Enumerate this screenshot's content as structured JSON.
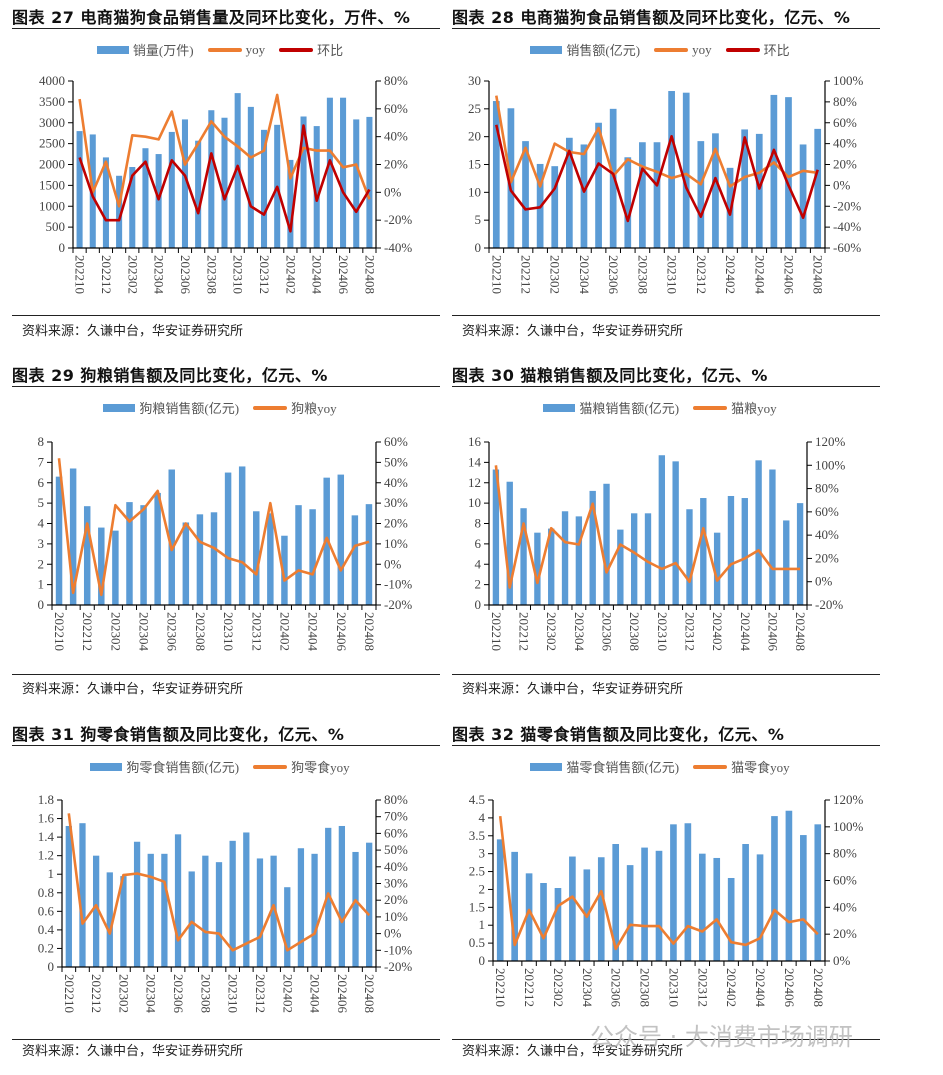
{
  "colors": {
    "bar": "#5B9BD5",
    "yoy": "#ED7D31",
    "mom": "#C00000"
  },
  "watermark": "公众号 · 大消费市场调研",
  "chart_data": [
    {
      "type": "bar+line",
      "title": "图表 27 电商猫狗食品销售量及同环比变化，万件、%",
      "source": "资料来源：久谦中台，华安证券研究所",
      "categories": [
        "202210",
        "202211",
        "202212",
        "202301",
        "202302",
        "202303",
        "202304",
        "202305",
        "202306",
        "202307",
        "202308",
        "202309",
        "202310",
        "202311",
        "202312",
        "202401",
        "202402",
        "202403",
        "202404",
        "202405",
        "202406",
        "202407",
        "202408"
      ],
      "x_tick_labels": [
        "202210",
        "202212",
        "202302",
        "202304",
        "202306",
        "202308",
        "202310",
        "202312",
        "202402",
        "202404",
        "202406",
        "202408"
      ],
      "ylim": [
        0,
        4000
      ],
      "y_ticks": [
        "0",
        "500",
        "1000",
        "1500",
        "2000",
        "2500",
        "3000",
        "3500",
        "4000"
      ],
      "y2lim": [
        -40,
        80
      ],
      "y2_ticks": [
        "-40%",
        "-20%",
        "0%",
        "20%",
        "40%",
        "60%",
        "80%"
      ],
      "grid": false,
      "legend": "top",
      "series": [
        {
          "name": "销量(万件)",
          "kind": "bar",
          "axis": "left",
          "values": [
            2800,
            2720,
            2170,
            1730,
            1940,
            2390,
            2250,
            2780,
            3080,
            2570,
            3300,
            3120,
            3710,
            3380,
            2830,
            2950,
            2110,
            3150,
            2920,
            3600,
            3600,
            3080,
            3140
          ]
        },
        {
          "name": "yoy",
          "kind": "line",
          "axis": "right",
          "color": "yoy",
          "values": [
            67,
            0,
            22,
            -10,
            41,
            40,
            38,
            58,
            20,
            35,
            51,
            40,
            33,
            25,
            30,
            70,
            10,
            32,
            30,
            30,
            18,
            20,
            -5
          ]
        },
        {
          "name": "环比",
          "kind": "line",
          "axis": "right",
          "color": "mom",
          "values": [
            25,
            -3,
            -20,
            -20,
            12,
            22,
            -5,
            23,
            12,
            -15,
            28,
            -5,
            19,
            -10,
            -16,
            4,
            -28,
            48,
            -6,
            23,
            0,
            -14,
            2
          ]
        }
      ]
    },
    {
      "type": "bar+line",
      "title": "图表 28 电商猫狗食品销售额及同环比变化，亿元、%",
      "source": "资料来源：久谦中台，华安证券研究所",
      "categories": [
        "202210",
        "202211",
        "202212",
        "202301",
        "202302",
        "202303",
        "202304",
        "202305",
        "202306",
        "202307",
        "202308",
        "202309",
        "202310",
        "202311",
        "202312",
        "202401",
        "202402",
        "202403",
        "202404",
        "202405",
        "202406",
        "202407",
        "202408"
      ],
      "x_tick_labels": [
        "202210",
        "202212",
        "202302",
        "202304",
        "202306",
        "202308",
        "202310",
        "202312",
        "202402",
        "202404",
        "202406",
        "202408"
      ],
      "ylim": [
        0,
        30
      ],
      "y_ticks": [
        "0",
        "5",
        "10",
        "15",
        "20",
        "25",
        "30"
      ],
      "y2lim": [
        -60,
        100
      ],
      "y2_ticks": [
        "-60%",
        "-40%",
        "-20%",
        "0%",
        "20%",
        "40%",
        "60%",
        "80%",
        "100%"
      ],
      "grid": false,
      "legend": "top",
      "series": [
        {
          "name": "销售额(亿元)",
          "kind": "bar",
          "axis": "left",
          "values": [
            26.4,
            25.1,
            19.2,
            15.1,
            14.7,
            19.8,
            18.6,
            22.5,
            25.0,
            16.3,
            19.0,
            19.0,
            28.2,
            27.9,
            19.2,
            20.6,
            14.4,
            21.3,
            20.5,
            27.5,
            27.1,
            18.6,
            21.4
          ]
        },
        {
          "name": "yoy",
          "kind": "line",
          "axis": "right",
          "color": "yoy",
          "values": [
            86,
            3,
            36,
            -1,
            40,
            32,
            30,
            55,
            9,
            25,
            18,
            13,
            7,
            11,
            1,
            35,
            -1,
            8,
            12,
            22,
            8,
            14,
            12
          ]
        },
        {
          "name": "环比",
          "kind": "line",
          "axis": "right",
          "color": "mom",
          "values": [
            58,
            -5,
            -23,
            -21,
            -3,
            33,
            -6,
            21,
            11,
            -34,
            16,
            0,
            47,
            -2,
            -30,
            7,
            -28,
            46,
            -3,
            34,
            0,
            -31,
            15
          ]
        }
      ]
    },
    {
      "type": "bar+line",
      "title": "图表 29 狗粮销售额及同比变化，亿元、%",
      "source": "资料来源：久谦中台，华安证券研究所",
      "categories": [
        "202210",
        "202211",
        "202212",
        "202301",
        "202302",
        "202303",
        "202304",
        "202305",
        "202306",
        "202307",
        "202308",
        "202309",
        "202310",
        "202311",
        "202312",
        "202401",
        "202402",
        "202403",
        "202404",
        "202405",
        "202406",
        "202407",
        "202408"
      ],
      "x_tick_labels": [
        "202210",
        "202212",
        "202302",
        "202304",
        "202306",
        "202308",
        "202310",
        "202312",
        "202402",
        "202404",
        "202406",
        "202408"
      ],
      "ylim": [
        0,
        8
      ],
      "y_ticks": [
        "0",
        "1",
        "2",
        "3",
        "4",
        "5",
        "6",
        "7",
        "8"
      ],
      "y2lim": [
        -20,
        60
      ],
      "y2_ticks": [
        "-20%",
        "-10%",
        "0%",
        "10%",
        "20%",
        "30%",
        "40%",
        "50%",
        "60%"
      ],
      "grid": false,
      "legend": "top",
      "series": [
        {
          "name": "狗粮销售额(亿元)",
          "kind": "bar",
          "axis": "left",
          "values": [
            6.3,
            6.7,
            4.85,
            3.8,
            3.65,
            5.05,
            4.9,
            5.5,
            6.65,
            4.05,
            4.45,
            4.55,
            6.5,
            6.8,
            4.6,
            4.5,
            3.4,
            4.9,
            4.7,
            6.25,
            6.4,
            4.4,
            4.95
          ]
        },
        {
          "name": "狗粮yoy",
          "kind": "line",
          "axis": "right",
          "color": "yoy",
          "values": [
            52,
            -14,
            20,
            -15,
            29,
            21,
            27,
            36,
            7,
            20,
            11,
            8,
            3,
            1,
            -5,
            30,
            -8,
            -3,
            -5,
            13,
            -3,
            9,
            11
          ]
        }
      ]
    },
    {
      "type": "bar+line",
      "title": "图表 30 猫粮销售额及同比变化，亿元、%",
      "source": "资料来源：久谦中台，华安证券研究所",
      "categories": [
        "202210",
        "202211",
        "202212",
        "202301",
        "202302",
        "202303",
        "202304",
        "202305",
        "202306",
        "202307",
        "202308",
        "202309",
        "202310",
        "202311",
        "202312",
        "202401",
        "202402",
        "202403",
        "202404",
        "202405",
        "202406",
        "202407",
        "202408"
      ],
      "x_tick_labels": [
        "202210",
        "202212",
        "202302",
        "202304",
        "202306",
        "202308",
        "202310",
        "202312",
        "202402",
        "202404",
        "202406",
        "202408"
      ],
      "ylim": [
        0,
        16
      ],
      "y_ticks": [
        "0",
        "2",
        "4",
        "6",
        "8",
        "10",
        "12",
        "14",
        "16"
      ],
      "y2lim": [
        -20,
        120
      ],
      "y2_ticks": [
        "-20%",
        "0%",
        "20%",
        "40%",
        "60%",
        "80%",
        "100%",
        "120%"
      ],
      "grid": false,
      "legend": "top",
      "series": [
        {
          "name": "猫粮销售额(亿元)",
          "kind": "bar",
          "axis": "left",
          "values": [
            13.3,
            12.1,
            9.5,
            7.1,
            7.5,
            9.2,
            8.7,
            11.2,
            11.9,
            7.4,
            9.0,
            9.0,
            14.7,
            14.1,
            9.4,
            10.5,
            7.1,
            10.7,
            10.5,
            14.2,
            13.3,
            8.3,
            10.0
          ]
        },
        {
          "name": "猫粮yoy",
          "kind": "line",
          "axis": "right",
          "color": "yoy",
          "values": [
            100,
            -5,
            50,
            -1,
            46,
            34,
            32,
            67,
            8,
            32,
            25,
            17,
            11,
            16,
            0,
            46,
            1,
            15,
            20,
            27,
            11,
            11,
            11
          ]
        }
      ]
    },
    {
      "type": "bar+line",
      "title": "图表 31 狗零食销售额及同比变化，亿元、%",
      "source": "资料来源：久谦中台，华安证券研究所",
      "categories": [
        "202210",
        "202211",
        "202212",
        "202301",
        "202302",
        "202303",
        "202304",
        "202305",
        "202306",
        "202307",
        "202308",
        "202309",
        "202310",
        "202311",
        "202312",
        "202401",
        "202402",
        "202403",
        "202404",
        "202405",
        "202406",
        "202407",
        "202408"
      ],
      "x_tick_labels": [
        "202210",
        "202212",
        "202302",
        "202304",
        "202306",
        "202308",
        "202310",
        "202312",
        "202402",
        "202404",
        "202406",
        "202408"
      ],
      "ylim": [
        0,
        1.8
      ],
      "y_ticks": [
        "0",
        "0.2",
        "0.4",
        "0.6",
        "0.8",
        "1",
        "1.2",
        "1.4",
        "1.6",
        "1.8"
      ],
      "y2lim": [
        -20,
        80
      ],
      "y2_ticks": [
        "-20%",
        "-10%",
        "0%",
        "10%",
        "20%",
        "30%",
        "40%",
        "50%",
        "60%",
        "70%",
        "80%"
      ],
      "grid": false,
      "legend": "top",
      "series": [
        {
          "name": "狗零食销售额(亿元)",
          "kind": "bar",
          "axis": "left",
          "values": [
            1.52,
            1.55,
            1.2,
            1.02,
            0.98,
            1.35,
            1.22,
            1.22,
            1.43,
            1.03,
            1.2,
            1.13,
            1.36,
            1.45,
            1.17,
            1.2,
            0.86,
            1.28,
            1.22,
            1.5,
            1.52,
            1.24,
            1.34
          ]
        },
        {
          "name": "狗零食yoy",
          "kind": "line",
          "axis": "right",
          "color": "yoy",
          "values": [
            72,
            6,
            17,
            0,
            35,
            36,
            34,
            31,
            -4,
            7,
            1,
            0,
            -10,
            -6,
            -2,
            17,
            -10,
            -5,
            0,
            24,
            7,
            20,
            11
          ]
        }
      ]
    },
    {
      "type": "bar+line",
      "title": "图表 32 猫零食销售额及同比变化，亿元、%",
      "source": "资料来源：久谦中台，华安证券研究所",
      "categories": [
        "202210",
        "202211",
        "202212",
        "202301",
        "202302",
        "202303",
        "202304",
        "202305",
        "202306",
        "202307",
        "202308",
        "202309",
        "202310",
        "202311",
        "202312",
        "202401",
        "202402",
        "202403",
        "202404",
        "202405",
        "202406",
        "202407",
        "202408"
      ],
      "x_tick_labels": [
        "202210",
        "202212",
        "202302",
        "202304",
        "202306",
        "202308",
        "202310",
        "202312",
        "202402",
        "202404",
        "202406",
        "202408"
      ],
      "ylim": [
        0,
        4.5
      ],
      "y_ticks": [
        "0",
        "0.5",
        "1",
        "1.5",
        "2",
        "2.5",
        "3",
        "3.5",
        "4",
        "4.5"
      ],
      "y2lim": [
        0,
        120
      ],
      "y2_ticks": [
        "0%",
        "20%",
        "40%",
        "60%",
        "80%",
        "100%",
        "120%"
      ],
      "grid": false,
      "legend": "top",
      "series": [
        {
          "name": "猫零食销售额(亿元)",
          "kind": "bar",
          "axis": "left",
          "values": [
            3.4,
            3.05,
            2.45,
            2.18,
            2.04,
            2.92,
            2.56,
            2.9,
            3.27,
            2.68,
            3.17,
            3.08,
            3.82,
            3.85,
            3.0,
            2.88,
            2.32,
            3.27,
            2.98,
            4.05,
            4.2,
            3.52,
            3.82
          ]
        },
        {
          "name": "猫零食yoy",
          "kind": "line",
          "axis": "right",
          "color": "yoy",
          "values": [
            108,
            12,
            38,
            17,
            41,
            48,
            33,
            52,
            9,
            27,
            26,
            26,
            13,
            26,
            22,
            31,
            14,
            12,
            17,
            38,
            29,
            31,
            20
          ]
        }
      ]
    }
  ]
}
